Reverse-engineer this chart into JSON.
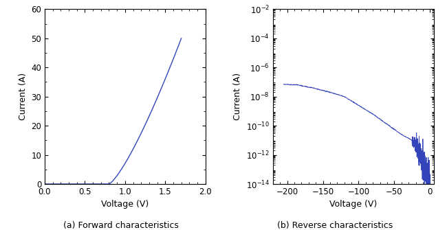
{
  "line_color": "#3344bb",
  "fig_width": 6.5,
  "fig_height": 3.35,
  "dpi": 100,
  "subplot_a": {
    "xlabel": "Voltage (V)",
    "ylabel": "Current (A)",
    "caption": "(a) Forward characteristics",
    "xlim": [
      0.0,
      2.0
    ],
    "ylim": [
      0,
      60
    ],
    "xticks": [
      0.0,
      0.5,
      1.0,
      1.5,
      2.0
    ],
    "yticks": [
      0,
      10,
      20,
      30,
      40,
      50,
      60
    ],
    "v_threshold": 0.8,
    "v_max": 1.7,
    "i_max": 50.0
  },
  "subplot_b": {
    "xlabel": "Voltage (V)",
    "ylabel": "Current (A)",
    "caption": "(b) Reverse characteristics",
    "xlim": [
      -220,
      5
    ],
    "ylim_log": [
      -14,
      -2
    ],
    "xticks": [
      -200,
      -150,
      -100,
      -50,
      0
    ],
    "v_start": -205,
    "v_noise_start": -25
  }
}
